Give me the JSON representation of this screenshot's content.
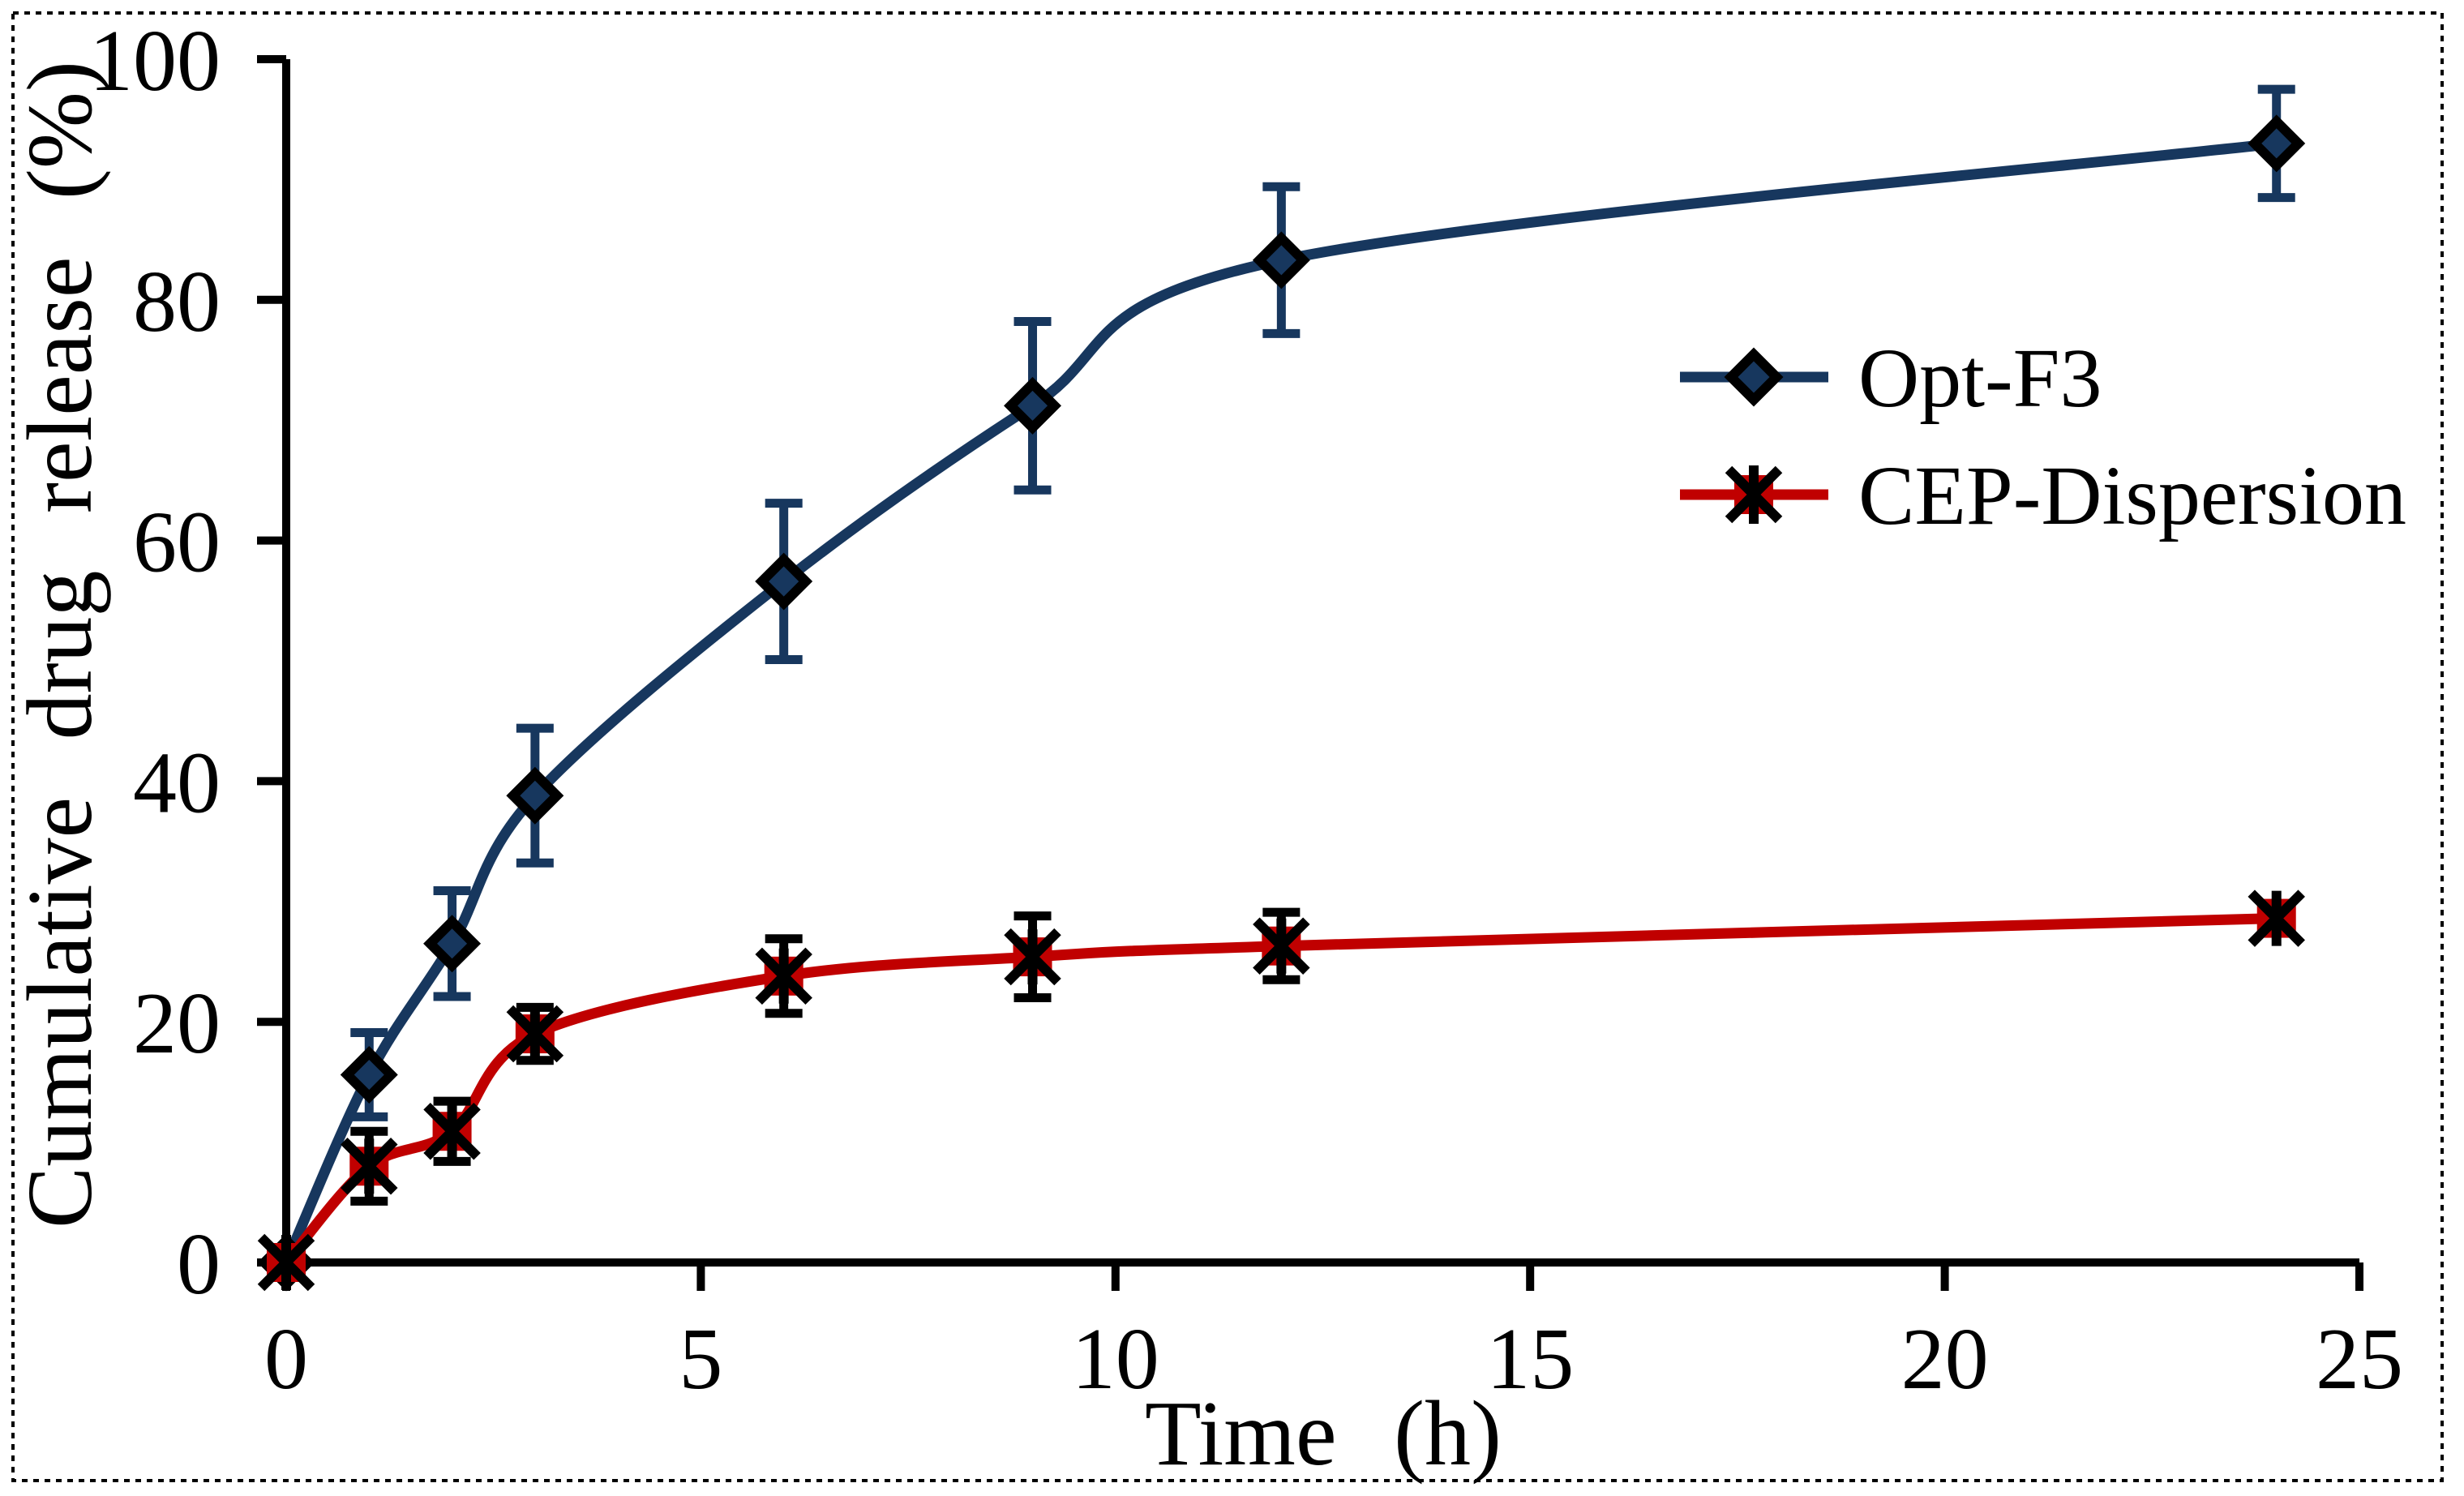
{
  "chart_data": {
    "type": "line",
    "title": "",
    "xlabel": "Time (h)",
    "ylabel": "Cumulative drug release (%)",
    "xlim": [
      0,
      25
    ],
    "ylim": [
      0,
      100
    ],
    "x_ticks": [
      0,
      5,
      10,
      15,
      20,
      25
    ],
    "y_ticks": [
      0,
      20,
      40,
      60,
      80,
      100
    ],
    "grid": false,
    "legend_position": "inside-upper-right",
    "x": [
      0,
      1,
      2,
      3,
      6,
      9,
      12,
      24
    ],
    "series": [
      {
        "name": "Opt-F3",
        "color": "#17375E",
        "marker": "diamond",
        "marker_fill": "#17375E",
        "marker_edge": "#000000",
        "error_color": "#17375E",
        "values": [
          0,
          15.6,
          26.5,
          38.8,
          56.6,
          71.2,
          83.3,
          93.0
        ],
        "errors": [
          0,
          3.5,
          4.4,
          5.6,
          6.5,
          7.0,
          6.1,
          4.5
        ]
      },
      {
        "name": "CEP-Dispersion",
        "color": "#C00000",
        "marker": "square-star",
        "marker_fill": "#C00000",
        "marker_edge": "#000000",
        "error_color": "#000000",
        "values": [
          0,
          8.0,
          10.9,
          19.0,
          23.8,
          25.4,
          26.3,
          28.6
        ],
        "errors": [
          0,
          2.9,
          2.5,
          2.2,
          3.1,
          3.4,
          2.8,
          1.0
        ]
      }
    ]
  },
  "figure": {
    "background": "#FFFFFF",
    "border_color": "#000000",
    "axis_color": "#000000"
  }
}
